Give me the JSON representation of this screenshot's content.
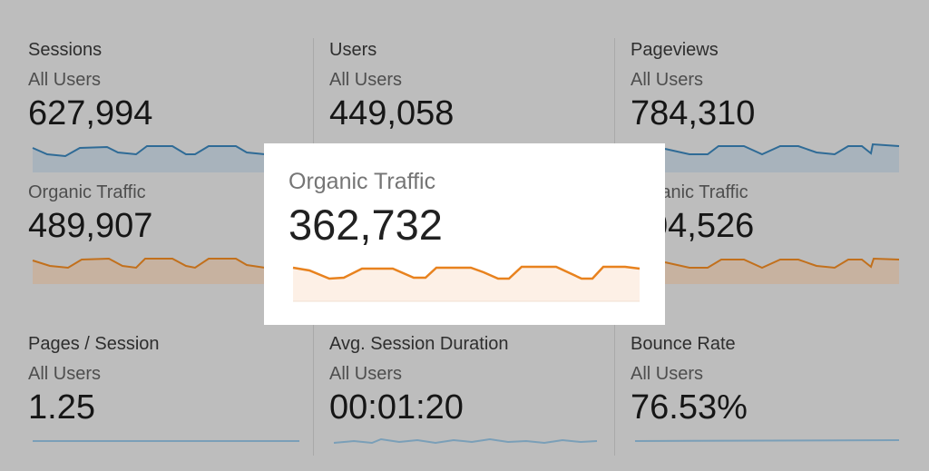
{
  "cards": [
    {
      "title": "Sessions",
      "segment": "All Users",
      "value": "627,994"
    },
    {
      "title": "Users",
      "segment": "All Users",
      "value": "449,058"
    },
    {
      "title": "Pageviews",
      "segment": "All Users",
      "value": "784,310"
    },
    {
      "segment": "Organic Traffic",
      "value": "489,907"
    },
    {
      "segment": "Organic Traffic",
      "value": "04,526"
    },
    {
      "title": "Pages / Session",
      "segment": "All Users",
      "value": "1.25"
    },
    {
      "title": "Avg. Session Duration",
      "segment": "All Users",
      "value": "00:01:20"
    },
    {
      "title": "Bounce Rate",
      "segment": "All Users",
      "value": "76.53%"
    }
  ],
  "focus": {
    "title": "Organic Traffic",
    "value": "362,732"
  }
}
